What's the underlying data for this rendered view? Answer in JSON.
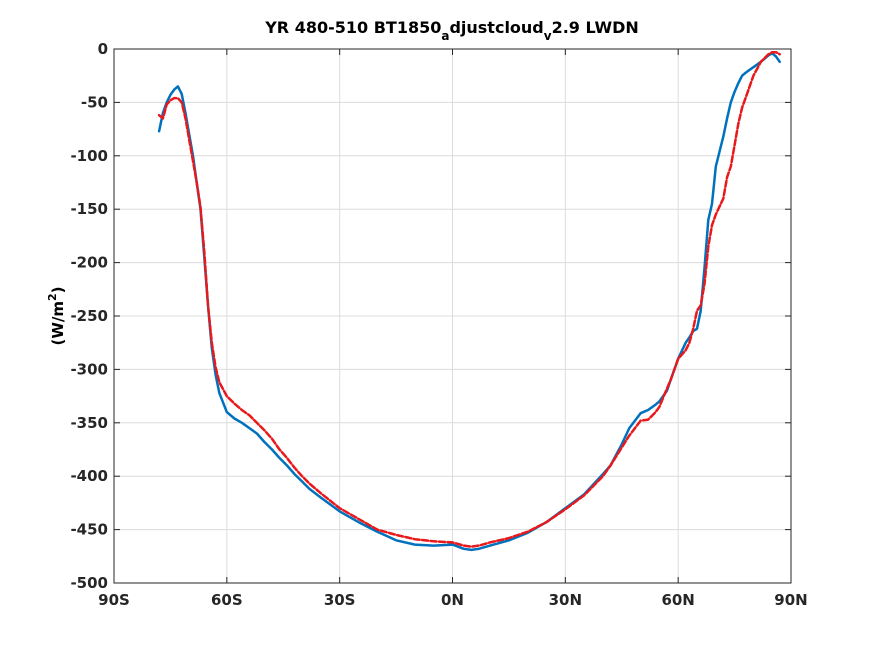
{
  "chart_data": {
    "type": "line",
    "title": "YR 480-510 BT1850adjustcloudv2.9 LWDN",
    "title_parts": {
      "before_a": "YR 480-510 BT1850",
      "sub_a": "a",
      "mid": "djustcloud",
      "sub_v": "v",
      "after_v": "2.9 LWDN"
    },
    "xlabel": "",
    "ylabel": "(W/m2)",
    "ylabel_parts": {
      "base": "(W/m",
      "sup": "2",
      "close": ")"
    },
    "xlim": [
      -90,
      90
    ],
    "ylim": [
      -500,
      0
    ],
    "xticks": [
      -90,
      -60,
      -30,
      0,
      30,
      60,
      90
    ],
    "xtick_labels": [
      "90S",
      "60S",
      "30S",
      "0N",
      "30N",
      "60N",
      "90N"
    ],
    "yticks": [
      0,
      -50,
      -100,
      -150,
      -200,
      -250,
      -300,
      -350,
      -400,
      -450,
      -500
    ],
    "ytick_labels": [
      "0",
      "-50",
      "-100",
      "-150",
      "-200",
      "-250",
      "-300",
      "-350",
      "-400",
      "-450",
      "-500"
    ],
    "grid": true,
    "series": [
      {
        "color": "#0072bd",
        "style": "solid",
        "x": [
          -78,
          -77,
          -76,
          -75,
          -74,
          -73,
          -72,
          -71,
          -70,
          -69,
          -68,
          -67,
          -66,
          -65,
          -64,
          -63,
          -62,
          -60,
          -58,
          -56,
          -54,
          -52,
          -50,
          -48,
          -46,
          -44,
          -42,
          -40,
          -38,
          -35,
          -30,
          -25,
          -20,
          -15,
          -10,
          -5,
          0,
          3,
          5,
          7,
          10,
          15,
          20,
          25,
          30,
          35,
          40,
          42,
          45,
          47,
          50,
          52,
          54,
          55,
          57,
          58,
          60,
          62,
          63,
          64,
          65,
          66,
          67,
          68,
          69,
          70,
          72,
          73,
          74,
          75,
          76,
          77,
          78,
          80,
          82,
          84,
          85,
          86,
          87
        ],
        "y": [
          -77,
          -60,
          -50,
          -43,
          -38,
          -35,
          -42,
          -60,
          -80,
          -100,
          -125,
          -150,
          -195,
          -240,
          -280,
          -305,
          -322,
          -340,
          -346,
          -350,
          -355,
          -360,
          -368,
          -375,
          -383,
          -390,
          -398,
          -405,
          -412,
          -420,
          -433,
          -443,
          -452,
          -460,
          -464,
          -465,
          -464,
          -468,
          -469,
          -468,
          -465,
          -460,
          -453,
          -443,
          -430,
          -417,
          -398,
          -390,
          -370,
          -355,
          -341,
          -338,
          -333,
          -330,
          -320,
          -310,
          -290,
          -275,
          -270,
          -264,
          -262,
          -245,
          -205,
          -160,
          -145,
          -110,
          -82,
          -65,
          -50,
          -40,
          -32,
          -25,
          -22,
          -17,
          -12,
          -6,
          -4,
          -7,
          -12
        ]
      },
      {
        "color": "#e8181b",
        "style": "dashed",
        "x": [
          -78,
          -77,
          -76,
          -75,
          -74,
          -73,
          -72,
          -71,
          -70,
          -69,
          -68,
          -67,
          -66,
          -65,
          -64,
          -63,
          -62,
          -60,
          -58,
          -56,
          -54,
          -52,
          -50,
          -48,
          -46,
          -44,
          -42,
          -40,
          -38,
          -35,
          -30,
          -25,
          -20,
          -15,
          -10,
          -5,
          0,
          3,
          5,
          7,
          10,
          15,
          20,
          25,
          30,
          35,
          40,
          42,
          45,
          47,
          50,
          52,
          54,
          55,
          57,
          58,
          60,
          62,
          63,
          64,
          65,
          66,
          67,
          68,
          69,
          70,
          72,
          73,
          74,
          75,
          76,
          77,
          78,
          80,
          82,
          84,
          85,
          86,
          87
        ],
        "y": [
          -62,
          -65,
          -52,
          -48,
          -46,
          -46,
          -50,
          -65,
          -85,
          -105,
          -125,
          -148,
          -190,
          -240,
          -275,
          -298,
          -312,
          -325,
          -332,
          -338,
          -343,
          -350,
          -357,
          -365,
          -375,
          -383,
          -392,
          -400,
          -407,
          -416,
          -430,
          -440,
          -450,
          -455,
          -459,
          -461,
          -462,
          -465,
          -466,
          -465,
          -462,
          -458,
          -452,
          -443,
          -431,
          -418,
          -400,
          -390,
          -373,
          -362,
          -348,
          -347,
          -340,
          -335,
          -318,
          -310,
          -290,
          -282,
          -275,
          -262,
          -245,
          -240,
          -220,
          -185,
          -165,
          -155,
          -140,
          -120,
          -110,
          -90,
          -70,
          -55,
          -45,
          -25,
          -12,
          -5,
          -3,
          -3,
          -5
        ]
      }
    ]
  }
}
